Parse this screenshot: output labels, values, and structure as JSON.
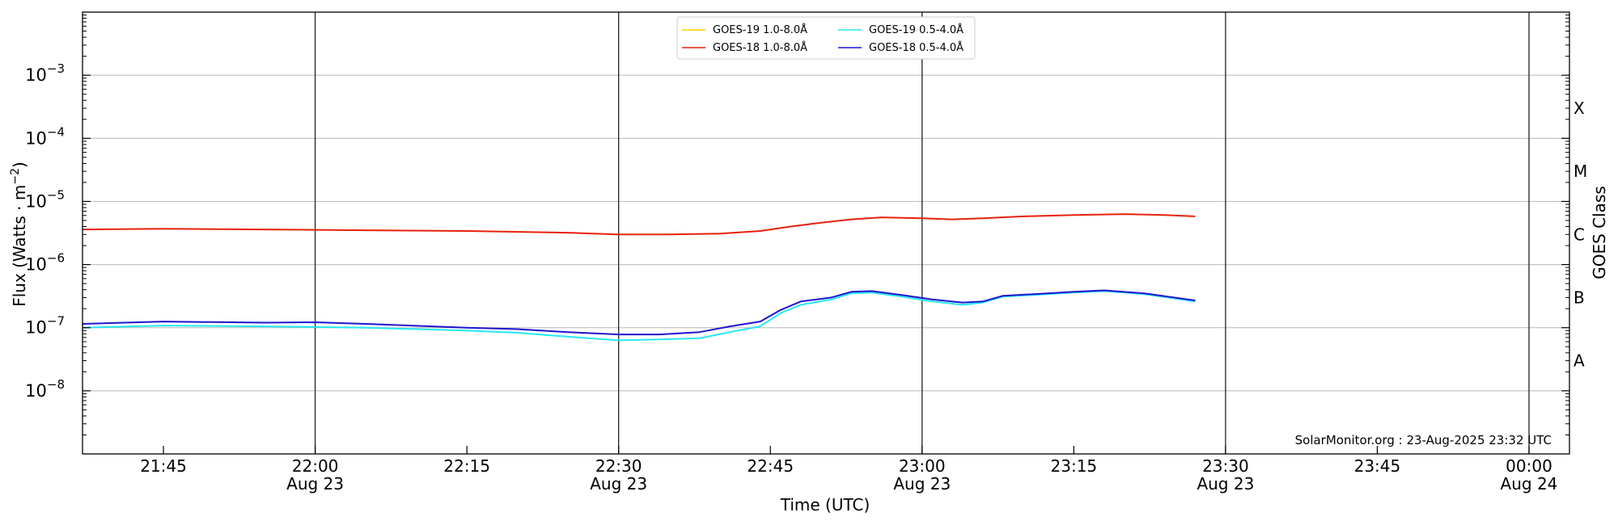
{
  "chart_data": {
    "type": "line",
    "xlabel": "Time (UTC)",
    "ylabel": "Flux (Watts · m",
    "ylabel_sup": "−2",
    "ylabel_close": ")",
    "ylabel_right": "GOES Class",
    "yscale": "log",
    "ylim": [
      1e-09,
      0.01
    ],
    "xlim": [
      "21:37",
      "00:04"
    ],
    "grid": "horizontal",
    "legend_position": "top-center",
    "credit": "SolarMonitor.org : 23-Aug-2025 23:32 UTC",
    "x_ticks": [
      {
        "t": "21:45",
        "label": "21:45",
        "date": ""
      },
      {
        "t": "22:00",
        "label": "22:00",
        "date": "Aug 23"
      },
      {
        "t": "22:15",
        "label": "22:15",
        "date": ""
      },
      {
        "t": "22:30",
        "label": "22:30",
        "date": "Aug 23"
      },
      {
        "t": "22:45",
        "label": "22:45",
        "date": ""
      },
      {
        "t": "23:00",
        "label": "23:00",
        "date": "Aug 23"
      },
      {
        "t": "23:15",
        "label": "23:15",
        "date": ""
      },
      {
        "t": "23:30",
        "label": "23:30",
        "date": "Aug 23"
      },
      {
        "t": "23:45",
        "label": "23:45",
        "date": ""
      },
      {
        "t": "00:00",
        "label": "00:00",
        "date": "Aug 24"
      }
    ],
    "day_lines": [
      "22:00",
      "22:30",
      "23:00",
      "23:30",
      "00:00"
    ],
    "y_ticks": [
      {
        "value": 0.001,
        "base": "10",
        "exp": "−3"
      },
      {
        "value": 0.0001,
        "base": "10",
        "exp": "−4"
      },
      {
        "value": 1e-05,
        "base": "10",
        "exp": "−5"
      },
      {
        "value": 1e-06,
        "base": "10",
        "exp": "−6"
      },
      {
        "value": 1e-07,
        "base": "10",
        "exp": "−7"
      },
      {
        "value": 1e-08,
        "base": "10",
        "exp": "−8"
      }
    ],
    "goes_classes": [
      {
        "label": "X",
        "value": 0.0003
      },
      {
        "label": "M",
        "value": 3e-05
      },
      {
        "label": "C",
        "value": 3e-06
      },
      {
        "label": "B",
        "value": 3e-07
      },
      {
        "label": "A",
        "value": 3e-08
      }
    ],
    "series": [
      {
        "name": "GOES-19 1.0-8.0Å",
        "color": "#f5d000",
        "points": []
      },
      {
        "name": "GOES-18 1.0-8.0Å",
        "color": "#e8200c",
        "points": [
          [
            "21:37",
            3.6e-06
          ],
          [
            "21:45",
            3.7e-06
          ],
          [
            "21:55",
            3.6e-06
          ],
          [
            "22:05",
            3.5e-06
          ],
          [
            "22:15",
            3.4e-06
          ],
          [
            "22:25",
            3.2e-06
          ],
          [
            "22:30",
            3e-06
          ],
          [
            "22:35",
            3e-06
          ],
          [
            "22:40",
            3.1e-06
          ],
          [
            "22:44",
            3.4e-06
          ],
          [
            "22:47",
            4e-06
          ],
          [
            "22:50",
            4.6e-06
          ],
          [
            "22:53",
            5.2e-06
          ],
          [
            "22:56",
            5.6e-06
          ],
          [
            "23:00",
            5.4e-06
          ],
          [
            "23:03",
            5.2e-06
          ],
          [
            "23:06",
            5.4e-06
          ],
          [
            "23:10",
            5.8e-06
          ],
          [
            "23:15",
            6.1e-06
          ],
          [
            "23:20",
            6.3e-06
          ],
          [
            "23:24",
            6.1e-06
          ],
          [
            "23:27",
            5.8e-06
          ]
        ]
      },
      {
        "name": "GOES-19 0.5-4.0Å",
        "color": "#26e8f2",
        "points": [
          [
            "21:37",
            1e-07
          ],
          [
            "21:45",
            1.08e-07
          ],
          [
            "21:55",
            1.05e-07
          ],
          [
            "22:05",
            1e-07
          ],
          [
            "22:15",
            9e-08
          ],
          [
            "22:20",
            8.3e-08
          ],
          [
            "22:25",
            7.2e-08
          ],
          [
            "22:30",
            6.3e-08
          ],
          [
            "22:34",
            6.5e-08
          ],
          [
            "22:38",
            6.8e-08
          ],
          [
            "22:41",
            8.5e-08
          ],
          [
            "22:44",
            1.05e-07
          ],
          [
            "22:46",
            1.7e-07
          ],
          [
            "22:48",
            2.3e-07
          ],
          [
            "22:51",
            2.8e-07
          ],
          [
            "22:53",
            3.5e-07
          ],
          [
            "22:55",
            3.6e-07
          ],
          [
            "22:58",
            3.1e-07
          ],
          [
            "23:01",
            2.6e-07
          ],
          [
            "23:04",
            2.3e-07
          ],
          [
            "23:06",
            2.5e-07
          ],
          [
            "23:08",
            3.1e-07
          ],
          [
            "23:11",
            3.3e-07
          ],
          [
            "23:15",
            3.6e-07
          ],
          [
            "23:18",
            3.8e-07
          ],
          [
            "23:22",
            3.4e-07
          ],
          [
            "23:27",
            2.6e-07
          ]
        ]
      },
      {
        "name": "GOES-18 0.5-4.0Å",
        "color": "#1f14cf",
        "points": [
          [
            "21:37",
            1.15e-07
          ],
          [
            "21:45",
            1.25e-07
          ],
          [
            "21:55",
            1.2e-07
          ],
          [
            "22:00",
            1.22e-07
          ],
          [
            "22:05",
            1.15e-07
          ],
          [
            "22:15",
            1e-07
          ],
          [
            "22:20",
            9.5e-08
          ],
          [
            "22:25",
            8.5e-08
          ],
          [
            "22:30",
            7.8e-08
          ],
          [
            "22:34",
            7.8e-08
          ],
          [
            "22:38",
            8.5e-08
          ],
          [
            "22:41",
            1.05e-07
          ],
          [
            "22:44",
            1.25e-07
          ],
          [
            "22:46",
            1.9e-07
          ],
          [
            "22:48",
            2.6e-07
          ],
          [
            "22:51",
            3e-07
          ],
          [
            "22:53",
            3.7e-07
          ],
          [
            "22:55",
            3.8e-07
          ],
          [
            "22:58",
            3.3e-07
          ],
          [
            "23:01",
            2.8e-07
          ],
          [
            "23:04",
            2.5e-07
          ],
          [
            "23:06",
            2.6e-07
          ],
          [
            "23:08",
            3.2e-07
          ],
          [
            "23:11",
            3.4e-07
          ],
          [
            "23:15",
            3.7e-07
          ],
          [
            "23:18",
            3.9e-07
          ],
          [
            "23:22",
            3.5e-07
          ],
          [
            "23:27",
            2.7e-07
          ]
        ]
      }
    ]
  }
}
